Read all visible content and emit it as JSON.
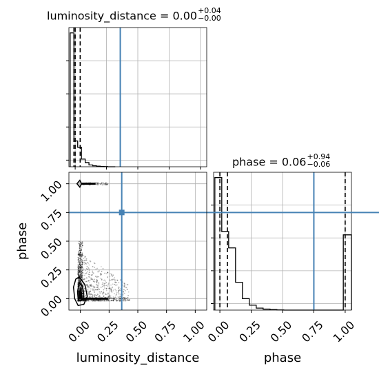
{
  "chart_data": {
    "type": "corner",
    "colors": {
      "truth": "#4682b4",
      "hist": "#000000",
      "grid": "#b0b0b0",
      "scatter": "#000000"
    },
    "panels": [
      {
        "name": "luminosity_distance-marginal",
        "type": "histogram",
        "title": {
          "param": "luminosity_distance",
          "value": "0.00",
          "plus": "+0.04",
          "minus": "−0.00"
        },
        "xlim": [
          -0.05,
          1.05
        ],
        "bin_edges": [
          -0.04,
          -0.01,
          0.02,
          0.05,
          0.08,
          0.11,
          0.14,
          0.17,
          0.2,
          0.23,
          0.26,
          0.29,
          0.32
        ],
        "counts": [
          960,
          185,
          140,
          55,
          30,
          13,
          7,
          4,
          2,
          1,
          0,
          0
        ],
        "quantile_lines": [
          -0.01,
          0.0,
          0.04
        ],
        "truth": 0.36,
        "grid": true
      },
      {
        "name": "phase-marginal",
        "type": "histogram",
        "title": {
          "param": "phase",
          "value": "0.06",
          "plus": "+0.94",
          "minus": "−0.06"
        },
        "xlim": [
          -0.05,
          1.05
        ],
        "bin_edges": [
          -0.04,
          0.015,
          0.07,
          0.125,
          0.18,
          0.235,
          0.29,
          0.345,
          0.4,
          0.455,
          0.51,
          0.565,
          0.62,
          0.675,
          0.73,
          0.785,
          0.84,
          0.895,
          0.95,
          0.985,
          1.05
        ],
        "counts": [
          810,
          480,
          380,
          170,
          70,
          30,
          12,
          6,
          3,
          1,
          0,
          0,
          0,
          0,
          0,
          0,
          0,
          0,
          0,
          460
        ],
        "quantile_lines": [
          0.0,
          0.06,
          1.0
        ],
        "truth": 0.75,
        "grid": true
      },
      {
        "name": "phase-vs-luminosity_distance",
        "type": "2d_density",
        "xlabel": "luminosity_distance",
        "ylabel": "phase",
        "xlim": [
          -0.1,
          1.1
        ],
        "ylim": [
          -0.1,
          1.1
        ],
        "truth": {
          "x": 0.36,
          "y": 0.75
        },
        "grid": true,
        "contours": [
          {
            "x": [
              -0.01,
              0.02,
              0.03,
              0.025,
              0.0,
              -0.02,
              -0.025,
              -0.01
            ],
            "y": [
              0.14,
              0.1,
              0.04,
              0.0,
              -0.02,
              0.0,
              0.06,
              0.14
            ]
          },
          {
            "x": [
              0.0,
              0.01,
              0.012,
              0.005,
              -0.005,
              -0.008
            ],
            "y": [
              0.08,
              0.05,
              0.01,
              -0.01,
              0.01,
              0.06
            ]
          },
          {
            "x": [
              -0.04,
              -0.01,
              0.04,
              0.06,
              0.03,
              -0.02,
              -0.05,
              -0.06
            ],
            "y": [
              0.17,
              0.19,
              0.12,
              0.02,
              -0.05,
              -0.06,
              0.0,
              0.1
            ]
          },
          {
            "x": [
              -0.03,
              -0.005,
              0.01,
              -0.005,
              -0.03
            ],
            "y": [
              1.0,
              1.03,
              1.0,
              0.97,
              1.0
            ]
          }
        ],
        "tails": [
          {
            "x0": 0.0,
            "x1": 0.24,
            "y": 1.0
          },
          {
            "x0": 0.02,
            "x1": 0.42,
            "y": 0.0
          }
        ],
        "xticks": [
          0.0,
          0.25,
          0.5,
          0.75,
          1.0
        ],
        "yticks": [
          0.0,
          0.25,
          0.5,
          0.75,
          1.0
        ]
      }
    ],
    "tick_labels": [
      "0.00",
      "0.25",
      "0.50",
      "0.75",
      "1.00"
    ]
  }
}
